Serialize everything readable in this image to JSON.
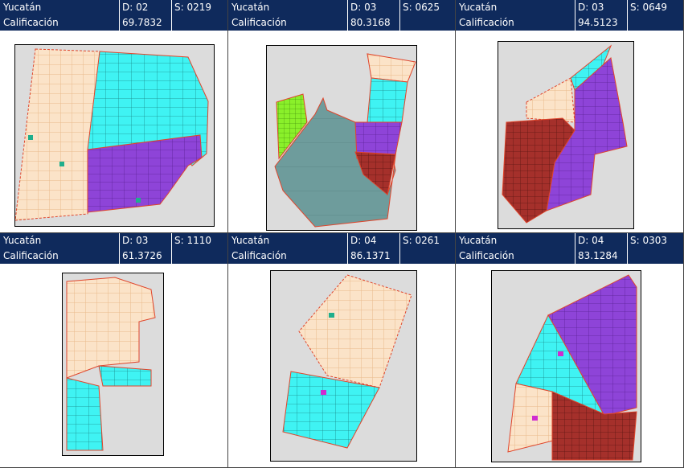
{
  "panels": [
    {
      "state": "Yucatán",
      "district": "D: 02",
      "section": "S: 0219",
      "score_label": "Calificación",
      "score": "69.7832"
    },
    {
      "state": "Yucatán",
      "district": "D: 03",
      "section": "S: 0625",
      "score_label": "Calificación",
      "score": "80.3168"
    },
    {
      "state": "Yucatán",
      "district": "D: 03",
      "section": "S: 0649",
      "score_label": "Calificación",
      "score": "94.5123"
    },
    {
      "state": "Yucatán",
      "district": "D: 03",
      "section": "S: 1110",
      "score_label": "Calificación",
      "score": "61.3726"
    },
    {
      "state": "Yucatán",
      "district": "D: 04",
      "section": "S: 0261",
      "score_label": "Calificación",
      "score": "86.1371"
    },
    {
      "state": "Yucatán",
      "district": "D: 04",
      "section": "S: 0303",
      "score_label": "Calificación",
      "score": "83.1284"
    }
  ]
}
